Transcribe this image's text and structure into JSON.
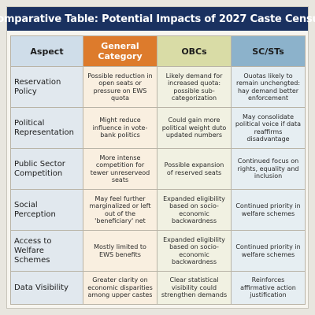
{
  "title": "Comparative Table: Potential Impacts of 2027 Caste Census",
  "colors": {
    "title_bar": "#1a3160",
    "general_header": "#dd7b2c",
    "obc_header": "#d9dca6",
    "sc_header": "#8cb2cb"
  },
  "headers": {
    "aspect": "Aspect",
    "general": "General Category",
    "obc": "OBCs",
    "sc": "SC/STs"
  },
  "rows": [
    {
      "aspect": "Reservation Policy",
      "general": "Possible reduction in open seats or pressure on EWS quota",
      "obc": "Likely demand for increased quota: possible sub-categorization",
      "sc": "Ouotas likely to remain unchengted: hay demand better enforcement"
    },
    {
      "aspect": "Political Representation",
      "general": "Might reduce influence in vote-bank politics",
      "obc": "Could gain more political weight duto updated numbers",
      "sc": "May consolidate political voice if data reaffirms disadvantage"
    },
    {
      "aspect": "Public Sector Competition",
      "general": "More intense competition for tewer unreserveod seats",
      "obc": "Possible expansion of reserved seats",
      "sc": "Continued focus on rights, equality and inclusion"
    },
    {
      "aspect": "Social Perception",
      "general": "May feel further marginalized or left out of the 'beneficiary' net",
      "obc": "Expanded eligibility based on socio-economic backwardness",
      "sc": "Continued priority in welfare schemes"
    },
    {
      "aspect": "Access to Welfare Schemes",
      "general": "Mostly limited to EWS benefits",
      "obc": "Expanded eligibility based on socio-economic backwardness",
      "sc": "Continued priority in welfare schemes"
    },
    {
      "aspect": "Data Visibility",
      "general": "Greater clarity on economic disparities among upper castes",
      "obc": "Clear statistical visibility could strengthen demands",
      "sc": "Reinforces affirmative action justification"
    }
  ]
}
